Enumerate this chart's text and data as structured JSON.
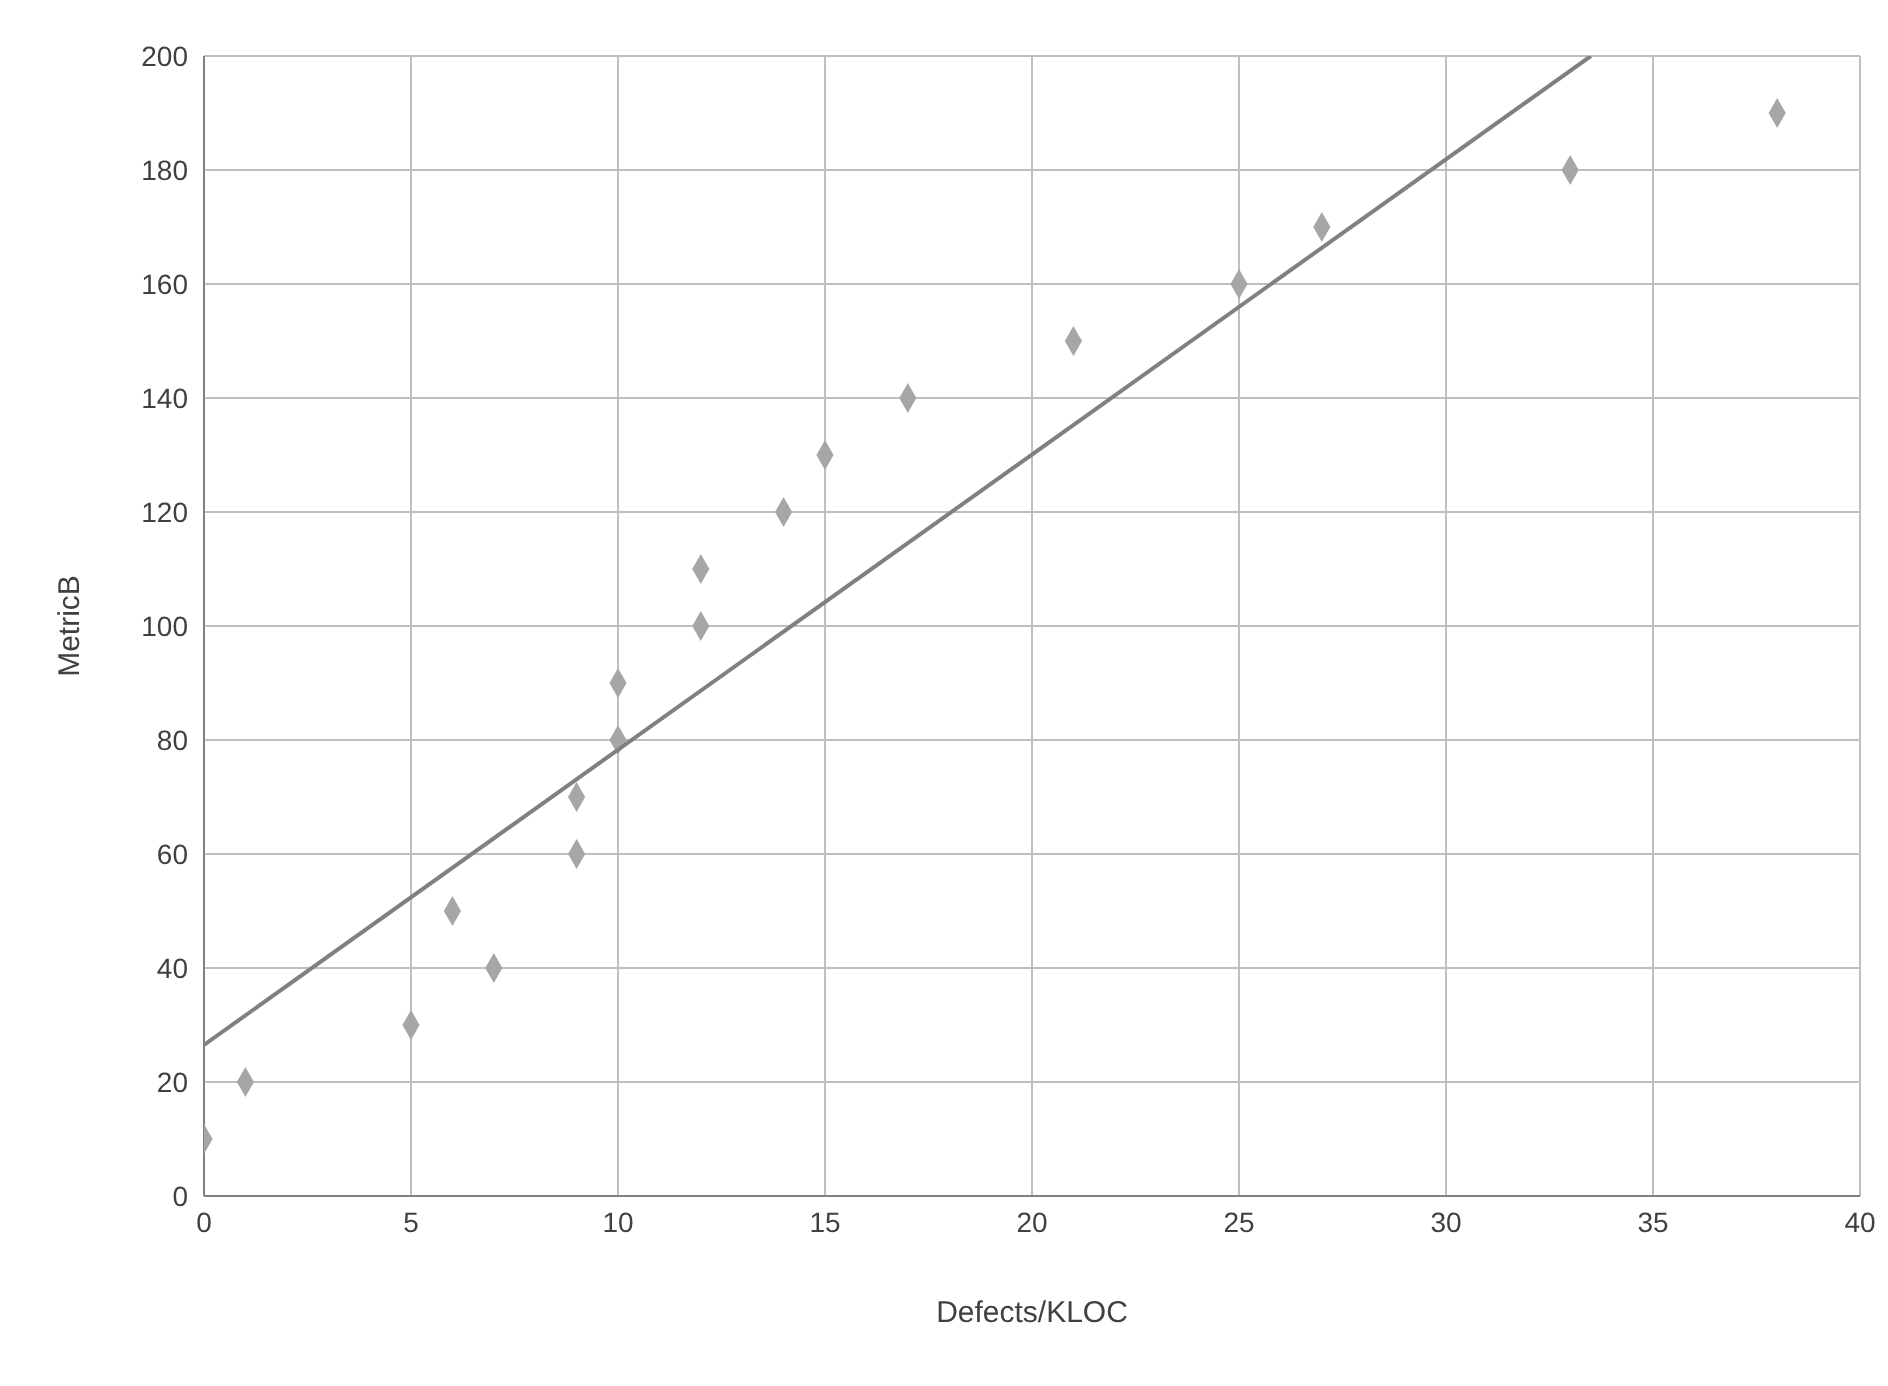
{
  "chart_data": {
    "type": "scatter",
    "xlabel": "Defects/KLOC",
    "ylabel": "MetricB",
    "xlim": [
      0,
      40
    ],
    "xticks": [
      0,
      5,
      10,
      15,
      20,
      25,
      30,
      35,
      40
    ],
    "ylim": [
      0,
      200
    ],
    "yticks": [
      0,
      20,
      40,
      60,
      80,
      100,
      120,
      140,
      160,
      180,
      200
    ],
    "grid": true,
    "legend": false,
    "marker": "diamond",
    "series": [
      {
        "color": "#a6a6a6",
        "x": [
          0,
          1,
          5,
          6,
          7,
          9,
          9,
          10,
          10,
          12,
          12,
          14,
          15,
          17,
          21,
          25,
          27,
          33,
          38
        ],
        "values": [
          10,
          20,
          30,
          50,
          40,
          60,
          70,
          80,
          90,
          100,
          110,
          120,
          130,
          140,
          150,
          160,
          170,
          180,
          190
        ]
      },
      {
        "type": "line",
        "marker": "none",
        "color": "#808080",
        "x": [
          0,
          33.5
        ],
        "values": [
          26.5,
          200
        ]
      }
    ]
  }
}
